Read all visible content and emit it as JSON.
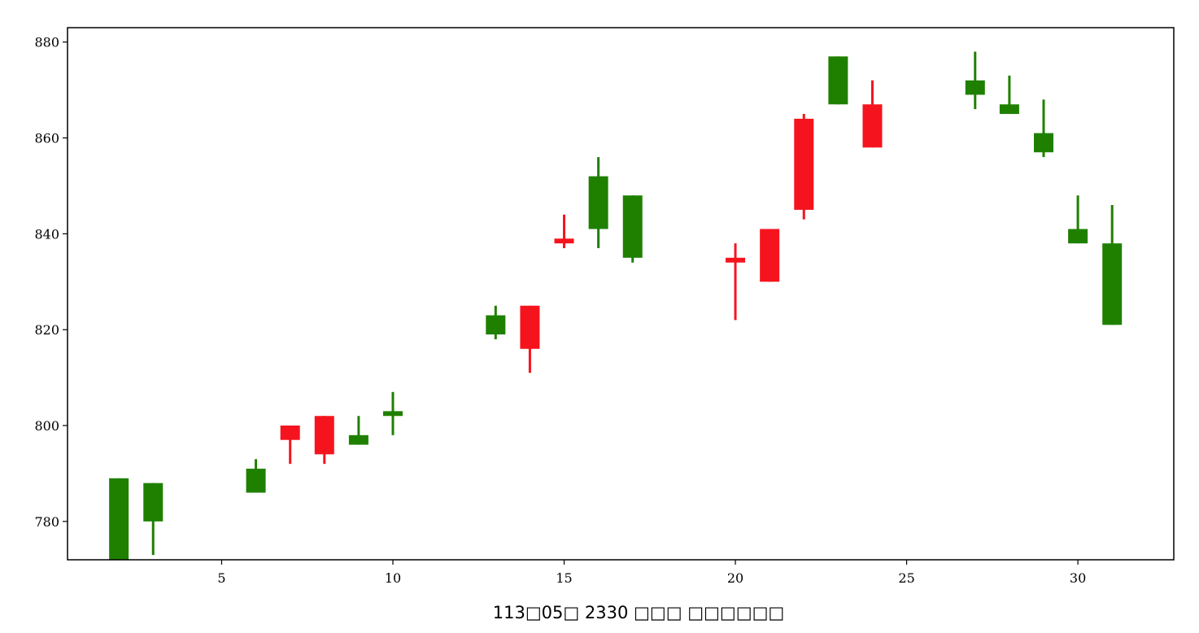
{
  "chart_data": {
    "type": "candlestick",
    "xlabel": "113□05□ 2330 □□□           □□□□□□",
    "xlim": [
      0.5,
      32.8
    ],
    "ylim": [
      772,
      883
    ],
    "xticks": [
      5,
      10,
      15,
      20,
      25,
      30
    ],
    "yticks": [
      780,
      800,
      820,
      840,
      860,
      880
    ],
    "grid": false,
    "colors": {
      "up": "#f5141e",
      "down": "#1f8000"
    },
    "candles": [
      {
        "day": 2,
        "open": 789,
        "high": 789,
        "low": 772,
        "close": 772
      },
      {
        "day": 3,
        "open": 788,
        "high": 788,
        "low": 773,
        "close": 780
      },
      {
        "day": 6,
        "open": 791,
        "high": 793,
        "low": 786,
        "close": 786
      },
      {
        "day": 7,
        "open": 797,
        "high": 800,
        "low": 792,
        "close": 800
      },
      {
        "day": 8,
        "open": 794,
        "high": 802,
        "low": 792,
        "close": 802
      },
      {
        "day": 9,
        "open": 798,
        "high": 802,
        "low": 796,
        "close": 796
      },
      {
        "day": 10,
        "open": 803,
        "high": 807,
        "low": 798,
        "close": 802
      },
      {
        "day": 13,
        "open": 823,
        "high": 825,
        "low": 818,
        "close": 819
      },
      {
        "day": 14,
        "open": 816,
        "high": 825,
        "low": 811,
        "close": 825
      },
      {
        "day": 15,
        "open": 838,
        "high": 844,
        "low": 837,
        "close": 839
      },
      {
        "day": 16,
        "open": 852,
        "high": 856,
        "low": 837,
        "close": 841
      },
      {
        "day": 17,
        "open": 848,
        "high": 848,
        "low": 834,
        "close": 835
      },
      {
        "day": 20,
        "open": 834,
        "high": 838,
        "low": 822,
        "close": 835
      },
      {
        "day": 21,
        "open": 830,
        "high": 841,
        "low": 830,
        "close": 841
      },
      {
        "day": 22,
        "open": 845,
        "high": 865,
        "low": 843,
        "close": 864
      },
      {
        "day": 23,
        "open": 877,
        "high": 877,
        "low": 867,
        "close": 867
      },
      {
        "day": 24,
        "open": 858,
        "high": 872,
        "low": 858,
        "close": 867
      },
      {
        "day": 27,
        "open": 872,
        "high": 878,
        "low": 866,
        "close": 869
      },
      {
        "day": 28,
        "open": 867,
        "high": 873,
        "low": 865,
        "close": 865
      },
      {
        "day": 29,
        "open": 861,
        "high": 868,
        "low": 856,
        "close": 857
      },
      {
        "day": 30,
        "open": 841,
        "high": 848,
        "low": 838,
        "close": 838
      },
      {
        "day": 31,
        "open": 838,
        "high": 846,
        "low": 821,
        "close": 821
      }
    ]
  }
}
